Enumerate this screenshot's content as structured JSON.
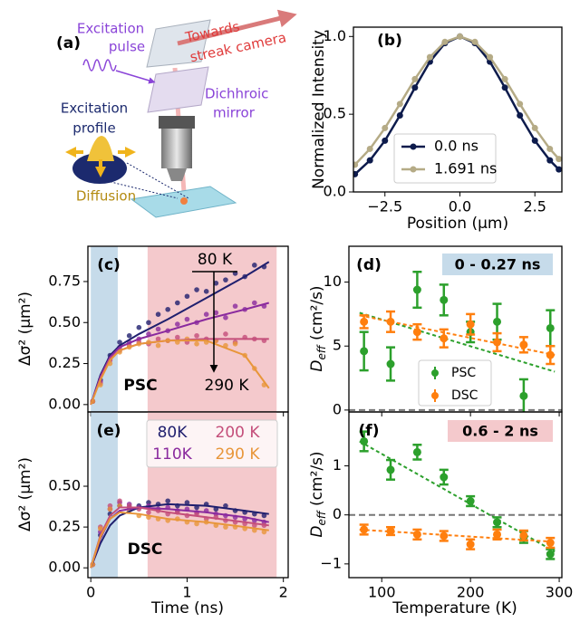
{
  "schematic": {
    "label": "(a)",
    "excitation_pulse": [
      "Excitation",
      "pulse"
    ],
    "towards": [
      "Towards",
      "streak camera"
    ],
    "mirror": [
      "Dichhroic",
      "mirror"
    ],
    "profile": [
      "Excitation",
      "profile"
    ],
    "diffusion": "Diffusion"
  },
  "chart_data": [
    {
      "type": "line",
      "label": "(b)",
      "xlabel": "Position (µm)",
      "ylabel": "Normalized Intensity",
      "x": [
        -3.5,
        -3,
        -2.5,
        -2,
        -1.5,
        -1,
        -0.5,
        0,
        0.5,
        1,
        1.5,
        2,
        2.5,
        3,
        3.3
      ],
      "series": [
        {
          "name": "0.0 ns",
          "color": "#0d1b4c",
          "values": [
            0.114,
            0.203,
            0.33,
            0.492,
            0.671,
            0.838,
            0.957,
            1,
            0.957,
            0.838,
            0.671,
            0.492,
            0.33,
            0.203,
            0.145
          ]
        },
        {
          "name": "1.691 ns",
          "color": "#b5ab86",
          "values": [
            0.175,
            0.277,
            0.411,
            0.566,
            0.726,
            0.867,
            0.965,
            1,
            0.965,
            0.867,
            0.726,
            0.566,
            0.411,
            0.277,
            0.212
          ]
        }
      ],
      "xlim": [
        -3.55,
        3.4
      ],
      "ylim": [
        0,
        1.06
      ],
      "xticks": [
        {
          "value": -2.5,
          "label": "−2.5"
        },
        {
          "value": 0,
          "label": "0.0"
        },
        2.5
      ],
      "yticks": [
        {
          "value": 0,
          "label": "0.0"
        },
        0.5,
        {
          "value": 1,
          "label": "1.0"
        }
      ],
      "legend": "lower center"
    },
    {
      "type": "scatter",
      "label": "(c)",
      "ylabel": "Δσ² (µm²)",
      "x": [
        0.02,
        0.1,
        0.2,
        0.3,
        0.4,
        0.5,
        0.6,
        0.7,
        0.8,
        0.9,
        1.0,
        1.1,
        1.2,
        1.3,
        1.4,
        1.5,
        1.6,
        1.7,
        1.8
      ],
      "series": [
        {
          "color": "#1f1f6e",
          "values": [
            0.02,
            0.15,
            0.3,
            0.38,
            0.42,
            0.47,
            0.5,
            0.55,
            0.58,
            0.62,
            0.66,
            0.7,
            0.69,
            0.74,
            0.76,
            0.8,
            0.78,
            0.85,
            0.84
          ]
        },
        {
          "color": "#8a2a9e",
          "values": [
            0.02,
            0.14,
            0.28,
            0.35,
            0.38,
            0.4,
            0.43,
            0.46,
            0.45,
            0.49,
            0.52,
            0.5,
            0.55,
            0.56,
            0.53,
            0.6,
            0.58,
            0.62,
            0.6
          ]
        },
        {
          "color": "#c44e7a",
          "values": [
            0.02,
            0.13,
            0.27,
            0.33,
            0.36,
            0.38,
            0.37,
            0.4,
            0.39,
            0.41,
            0.38,
            0.42,
            0.4,
            0.39,
            0.43,
            0.38,
            0.41,
            0.4,
            0.39
          ]
        },
        {
          "color": "#e8963a",
          "values": [
            0.02,
            0.12,
            0.25,
            0.32,
            0.35,
            0.37,
            0.38,
            0.36,
            0.39,
            0.38,
            0.4,
            0.37,
            0.38,
            0.39,
            0.36,
            0.37,
            0.3,
            0.22,
            0.12
          ]
        }
      ],
      "fit_x": [
        0,
        0.1,
        0.2,
        0.3,
        0.5,
        0.8,
        1.2,
        1.6,
        1.85
      ],
      "fits": [
        {
          "color": "#1f1f6e",
          "values": [
            0,
            0.18,
            0.3,
            0.36,
            0.43,
            0.52,
            0.65,
            0.78,
            0.87
          ]
        },
        {
          "color": "#8a2a9e",
          "values": [
            0,
            0.17,
            0.29,
            0.35,
            0.4,
            0.45,
            0.52,
            0.58,
            0.62
          ]
        },
        {
          "color": "#c44e7a",
          "values": [
            0,
            0.16,
            0.28,
            0.33,
            0.37,
            0.39,
            0.4,
            0.4,
            0.4
          ]
        },
        {
          "color": "#e8963a",
          "values": [
            0,
            0.15,
            0.27,
            0.33,
            0.37,
            0.39,
            0.39,
            0.3,
            0.1
          ]
        }
      ],
      "spans": [
        {
          "range": [
            0,
            0.28
          ],
          "color": "#c6dbea"
        },
        {
          "range": [
            0.59,
            1.93
          ],
          "color": "#f4c9cc"
        }
      ],
      "annotations": [
        "80 K",
        "290 K",
        "PSC"
      ],
      "xlim": [
        -0.03,
        2.05
      ],
      "ylim": [
        -0.045,
        0.965
      ],
      "xticks": [
        0,
        1,
        2
      ],
      "xtick_labels": false,
      "yticks": [
        {
          "value": 0,
          "label": "0.00"
        },
        0.25,
        {
          "value": 0.5,
          "label": "0.50"
        },
        0.75
      ]
    },
    {
      "type": "scatter",
      "label": "(e)",
      "xlabel": "Time (ns)",
      "ylabel": "Δσ² (µm²)",
      "x": [
        0.02,
        0.1,
        0.2,
        0.3,
        0.4,
        0.5,
        0.6,
        0.7,
        0.8,
        0.9,
        1.0,
        1.1,
        1.2,
        1.3,
        1.4,
        1.5,
        1.6,
        1.7,
        1.8
      ],
      "series": [
        {
          "name": "80K",
          "color": "#1f1f6e",
          "values": [
            0.02,
            0.2,
            0.33,
            0.38,
            0.37,
            0.38,
            0.4,
            0.39,
            0.41,
            0.38,
            0.4,
            0.37,
            0.39,
            0.36,
            0.38,
            0.35,
            0.34,
            0.33,
            0.32
          ]
        },
        {
          "name": "110K",
          "color": "#8a2a9e",
          "values": [
            0.02,
            0.22,
            0.36,
            0.4,
            0.39,
            0.37,
            0.38,
            0.36,
            0.37,
            0.35,
            0.36,
            0.34,
            0.35,
            0.33,
            0.32,
            0.31,
            0.3,
            0.29,
            0.28
          ]
        },
        {
          "name": "200 K",
          "color": "#c44e7a",
          "values": [
            0.02,
            0.25,
            0.38,
            0.41,
            0.38,
            0.36,
            0.34,
            0.35,
            0.33,
            0.34,
            0.32,
            0.33,
            0.3,
            0.31,
            0.29,
            0.28,
            0.27,
            0.26,
            0.26
          ]
        },
        {
          "name": "290 K",
          "color": "#e8963a",
          "values": [
            0.02,
            0.24,
            0.36,
            0.38,
            0.35,
            0.32,
            0.31,
            0.3,
            0.29,
            0.3,
            0.28,
            0.27,
            0.28,
            0.26,
            0.25,
            0.25,
            0.24,
            0.23,
            0.22
          ]
        }
      ],
      "fit_x": [
        0,
        0.1,
        0.2,
        0.3,
        0.5,
        0.8,
        1.2,
        1.6,
        1.85
      ],
      "fits": [
        {
          "color": "#1f1f6e",
          "values": [
            0,
            0.15,
            0.26,
            0.32,
            0.37,
            0.39,
            0.38,
            0.35,
            0.33
          ]
        },
        {
          "color": "#8a2a9e",
          "values": [
            0,
            0.18,
            0.3,
            0.35,
            0.37,
            0.36,
            0.34,
            0.31,
            0.28
          ]
        },
        {
          "color": "#c44e7a",
          "values": [
            0,
            0.2,
            0.32,
            0.37,
            0.37,
            0.34,
            0.31,
            0.28,
            0.26
          ]
        },
        {
          "color": "#e8963a",
          "values": [
            0,
            0.19,
            0.3,
            0.34,
            0.33,
            0.3,
            0.28,
            0.25,
            0.23
          ]
        }
      ],
      "spans": [
        {
          "range": [
            0,
            0.28
          ],
          "color": "#c6dbea"
        },
        {
          "range": [
            0.59,
            1.93
          ],
          "color": "#f4c9cc"
        }
      ],
      "annotations": [
        "DSC"
      ],
      "xlim": [
        -0.03,
        2.05
      ],
      "ylim": [
        -0.06,
        0.955
      ],
      "xticks": [
        0,
        1,
        2
      ],
      "yticks": [
        {
          "value": 0,
          "label": "0.00"
        },
        0.25,
        {
          "value": 0.5,
          "label": "0.50"
        }
      ],
      "legend": "upper center"
    },
    {
      "type": "errorbar",
      "label": "(d)",
      "ylabel": {
        "symbol": "D",
        "subscript": "eff",
        "unit": " (cm²/s)"
      },
      "x": [
        80,
        110,
        140,
        170,
        200,
        230,
        260,
        290
      ],
      "series": [
        {
          "name": "PSC",
          "color": "#2ca02c",
          "values": [
            4.6,
            3.6,
            9.4,
            8.6,
            6.1,
            6.9,
            1.1,
            6.4
          ],
          "errors": [
            1.5,
            1.3,
            1.4,
            1.2,
            0.8,
            1.4,
            1.3,
            1.4
          ]
        },
        {
          "name": "DSC",
          "color": "#ff7f0e",
          "values": [
            6.9,
            6.9,
            6.1,
            5.6,
            6.7,
            5.3,
            5.1,
            4.3
          ],
          "errors": [
            0.5,
            0.8,
            0.6,
            0.7,
            0.8,
            0.7,
            0.6,
            0.7
          ]
        }
      ],
      "fit_x": [
        75,
        295
      ],
      "fits": [
        {
          "color": "#2ca02c",
          "values": [
            7.6,
            3.0
          ]
        },
        {
          "color": "#ff7f0e",
          "values": [
            7.4,
            4.3
          ]
        }
      ],
      "reference_line": 0,
      "box_label": "0 - 0.27 ns",
      "box_color": "#c6dbea",
      "xlim": [
        63,
        303
      ],
      "ylim": [
        -0.15,
        12.8
      ],
      "xticks": [
        100,
        200,
        300
      ],
      "xtick_labels": false,
      "yticks": [
        0,
        5,
        10
      ],
      "legend": "lower center"
    },
    {
      "type": "errorbar",
      "label": "(f)",
      "xlabel": "Temperature (K)",
      "ylabel": {
        "symbol": "D",
        "subscript": "eff",
        "unit": " (cm²/s)"
      },
      "x": [
        80,
        110,
        140,
        170,
        200,
        230,
        260,
        290
      ],
      "series": [
        {
          "color": "#2ca02c",
          "values": [
            1.5,
            0.92,
            1.28,
            0.77,
            0.28,
            -0.15,
            -0.45,
            -0.8
          ],
          "errors": [
            0.2,
            0.2,
            0.15,
            0.15,
            0.1,
            0.1,
            0.12,
            0.1
          ]
        },
        {
          "color": "#ff7f0e",
          "values": [
            -0.3,
            -0.33,
            -0.4,
            -0.43,
            -0.6,
            -0.4,
            -0.42,
            -0.57
          ],
          "errors": [
            0.1,
            0.08,
            0.1,
            0.1,
            0.1,
            0.1,
            0.1,
            0.1
          ]
        }
      ],
      "fit_x": [
        75,
        295
      ],
      "fits": [
        {
          "color": "#2ca02c",
          "values": [
            1.5,
            -0.75
          ]
        },
        {
          "color": "#ff7f0e",
          "values": [
            -0.3,
            -0.55
          ]
        }
      ],
      "reference_line": 0,
      "box_label": "0.6 - 2 ns",
      "box_color": "#f4c9cc",
      "xlim": [
        63,
        303
      ],
      "ylim": [
        -1.28,
        2.1
      ],
      "xticks": [
        100,
        200,
        300
      ],
      "yticks": [
        {
          "value": -1,
          "label": "−1"
        },
        0,
        1
      ]
    }
  ]
}
